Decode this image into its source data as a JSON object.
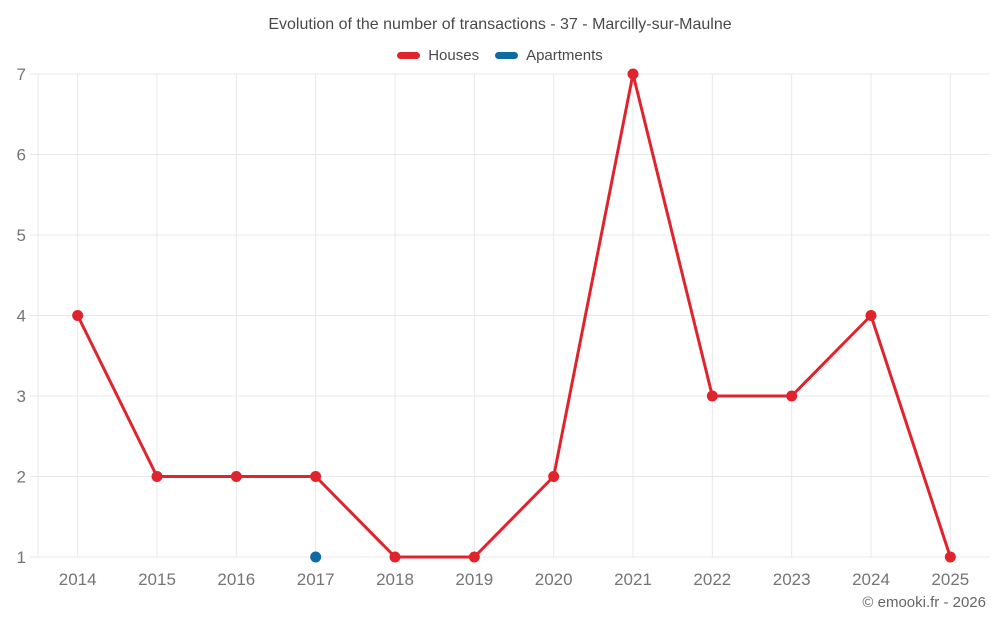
{
  "title": "Evolution of the number of transactions - 37 - Marcilly-sur-Maulne",
  "copyright": "© emooki.fr - 2026",
  "colors": {
    "houses": "#e0242d",
    "apartments": "#0d6aa2",
    "grid": "#e8e8e8",
    "axis_text": "#757575",
    "title_text": "#4a4a4a",
    "copyright_text": "#666666"
  },
  "chart_data": {
    "type": "line",
    "title": "Evolution of the number of transactions - 37 - Marcilly-sur-Maulne",
    "categories": [
      "2014",
      "2015",
      "2016",
      "2017",
      "2018",
      "2019",
      "2020",
      "2021",
      "2022",
      "2023",
      "2024",
      "2025"
    ],
    "series": [
      {
        "name": "Houses",
        "color": "#e0242d",
        "values": [
          4,
          2,
          2,
          2,
          1,
          1,
          2,
          7,
          3,
          3,
          4,
          1
        ]
      },
      {
        "name": "Apartments",
        "color": "#0d6aa2",
        "values": [
          null,
          null,
          null,
          1,
          null,
          null,
          null,
          null,
          null,
          null,
          null,
          null
        ]
      }
    ],
    "xlabel": "",
    "ylabel": "",
    "ylim": [
      1,
      7
    ],
    "yticks": [
      1,
      2,
      3,
      4,
      5,
      6,
      7
    ],
    "grid": true,
    "legend_position": "top"
  }
}
